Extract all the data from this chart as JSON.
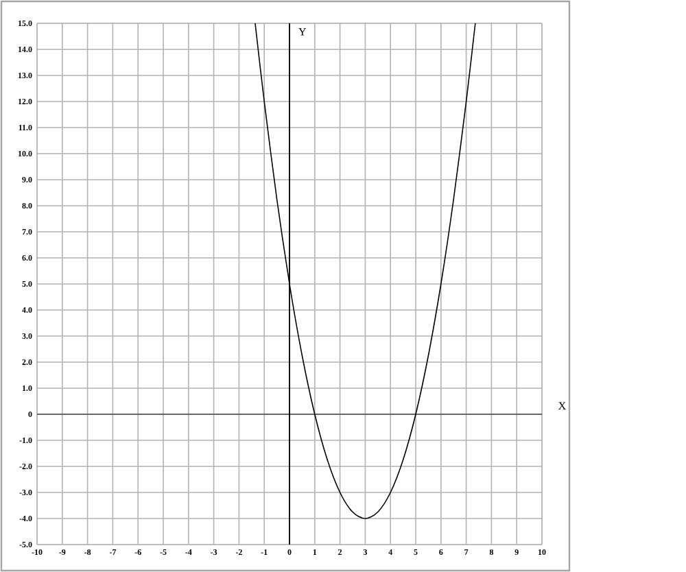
{
  "chart_data": {
    "type": "line",
    "xlabel": "X",
    "ylabel": "Y",
    "x": [
      -1.36,
      -1,
      -0.5,
      0,
      0.5,
      1,
      1.5,
      2,
      2.5,
      3,
      3.5,
      4,
      4.5,
      5,
      5.5,
      6,
      6.5,
      7,
      7.36
    ],
    "series": [
      {
        "color": "#000000",
        "values": [
          15,
          12,
          8.25,
          5,
          2.25,
          0,
          -1.75,
          -3,
          -3.75,
          -4,
          -3.75,
          -3,
          -1.75,
          0,
          2.25,
          5,
          8.25,
          12,
          15
        ]
      }
    ],
    "xlim": [
      -10,
      10
    ],
    "ylim": [
      -5,
      15
    ],
    "xticks": [
      -10,
      -9,
      -8,
      -7,
      -6,
      -5,
      -4,
      -3,
      -2,
      -1,
      0,
      1,
      2,
      3,
      4,
      5,
      6,
      7,
      8,
      9,
      10
    ],
    "yticks": [
      {
        "value": -5,
        "label": "-5.0"
      },
      {
        "value": -4,
        "label": "-4.0"
      },
      {
        "value": -3,
        "label": "-3.0"
      },
      {
        "value": -2,
        "label": "-2.0"
      },
      {
        "value": -1,
        "label": "-1.0"
      },
      {
        "value": 0,
        "label": "0"
      },
      {
        "value": 1,
        "label": "1.0"
      },
      {
        "value": 2,
        "label": "2.0"
      },
      {
        "value": 3,
        "label": "3.0"
      },
      {
        "value": 4,
        "label": "4.0"
      },
      {
        "value": 5,
        "label": "5.0"
      },
      {
        "value": 6,
        "label": "6.0"
      },
      {
        "value": 7,
        "label": "7.0"
      },
      {
        "value": 8,
        "label": "8.0"
      },
      {
        "value": 9,
        "label": "9.0"
      },
      {
        "value": 10,
        "label": "10.0"
      },
      {
        "value": 11,
        "label": "11.0"
      },
      {
        "value": 12,
        "label": "12.0"
      },
      {
        "value": 13,
        "label": "13.0"
      },
      {
        "value": 14,
        "label": "14.0"
      },
      {
        "value": 15,
        "label": "15.0"
      }
    ],
    "grid": true,
    "marker": "none",
    "line_style": "solid"
  }
}
